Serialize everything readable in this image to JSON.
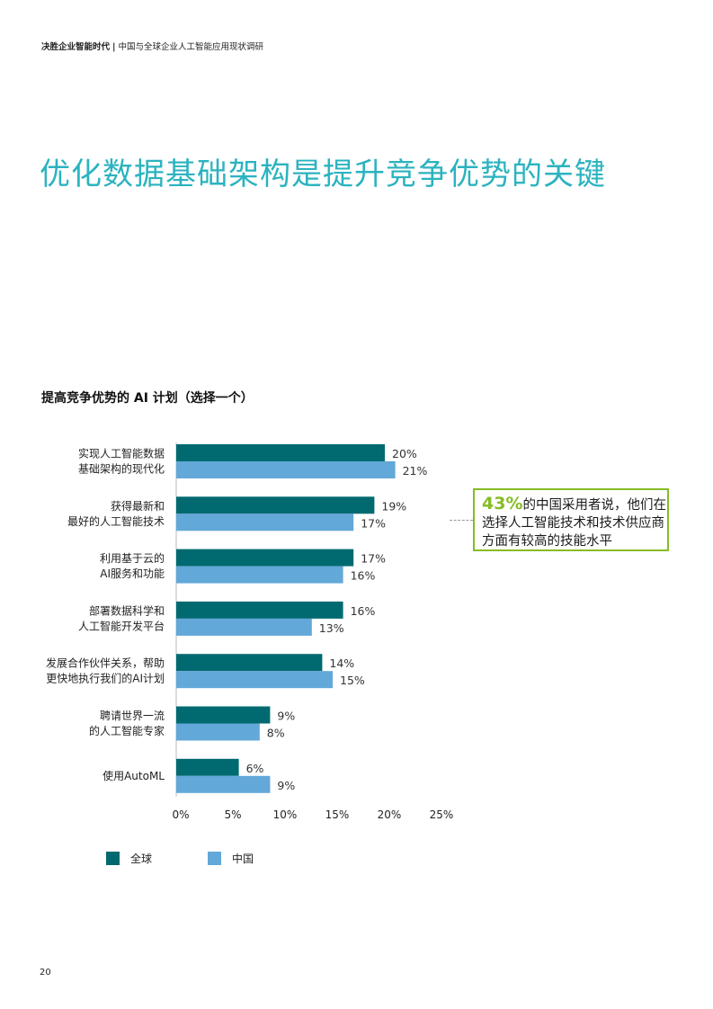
{
  "header": {
    "report_name": "决胜企业智能时代",
    "separator": "|",
    "subtitle": "中国与全球企业人工智能应用现状调研"
  },
  "page_title": "优化数据基础架构是提升竞争优势的关键",
  "chart_title": "提高竞争优势的 AI 计划（选择一个）",
  "callout": {
    "percent": "43%",
    "text": "的中国采用者说，他们在选择人工智能技术和技术供应商方面有较高的技能水平"
  },
  "legend": {
    "global": "全球",
    "china": "中国"
  },
  "colors": {
    "global": "#006a70",
    "china": "#62a8d8",
    "accent": "#86bc25",
    "title": "#2bb3bf"
  },
  "page_number": "20",
  "chart_data": {
    "type": "bar",
    "orientation": "horizontal",
    "categories": [
      [
        "实现人工智能数据",
        "基础架构的现代化"
      ],
      [
        "获得最新和",
        "最好的人工智能技术"
      ],
      [
        "利用基于云的",
        "AI服务和功能"
      ],
      [
        "部署数据科学和",
        "人工智能开发平台"
      ],
      [
        "发展合作伙伴关系，帮助",
        "更快地执行我们的AI计划"
      ],
      [
        "聘请世界一流",
        "的人工智能专家"
      ],
      [
        "使用AutoML"
      ]
    ],
    "series": [
      {
        "name": "全球",
        "values": [
          20,
          19,
          17,
          16,
          14,
          9,
          6
        ]
      },
      {
        "name": "中国",
        "values": [
          21,
          17,
          16,
          13,
          15,
          8,
          9
        ]
      }
    ],
    "x_ticks": [
      "0%",
      "5%",
      "10%",
      "15%",
      "20%",
      "25%"
    ],
    "xlim": [
      0,
      25
    ],
    "value_suffix": "%"
  }
}
